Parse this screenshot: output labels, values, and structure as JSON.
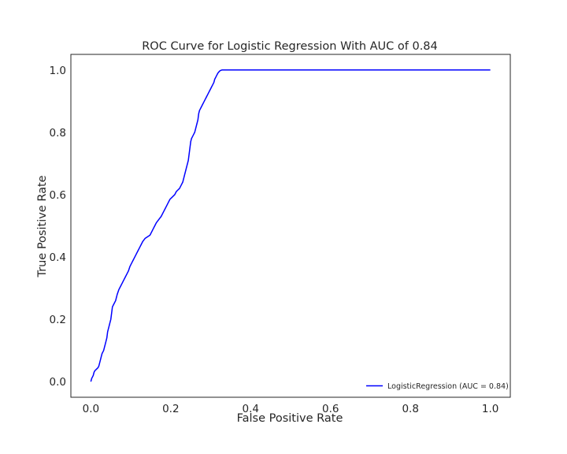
{
  "chart_data": {
    "type": "line",
    "title": "ROC Curve for Logistic Regression With AUC of 0.84",
    "xlabel": "False Positive Rate",
    "ylabel": "True Positive Rate",
    "xlim": [
      -0.05,
      1.05
    ],
    "ylim": [
      -0.05,
      1.05
    ],
    "xticks": [
      0.0,
      0.2,
      0.4,
      0.6,
      0.8,
      1.0
    ],
    "yticks": [
      0.0,
      0.2,
      0.4,
      0.6,
      0.8,
      1.0
    ],
    "xtick_labels": [
      "0.0",
      "0.2",
      "0.4",
      "0.6",
      "0.8",
      "1.0"
    ],
    "ytick_labels": [
      "0.0",
      "0.2",
      "0.4",
      "0.6",
      "0.8",
      "1.0"
    ],
    "grid": false,
    "legend_position": "lower-right",
    "series": [
      {
        "name": "LogisticRegression (AUC = 0.84)",
        "color": "#0000ff",
        "x": [
          0.0,
          0.002,
          0.004,
          0.006,
          0.008,
          0.01,
          0.014,
          0.018,
          0.02,
          0.022,
          0.024,
          0.026,
          0.028,
          0.03,
          0.032,
          0.034,
          0.036,
          0.038,
          0.04,
          0.042,
          0.044,
          0.046,
          0.048,
          0.05,
          0.052,
          0.054,
          0.058,
          0.062,
          0.064,
          0.066,
          0.07,
          0.074,
          0.078,
          0.082,
          0.086,
          0.09,
          0.094,
          0.098,
          0.102,
          0.106,
          0.11,
          0.114,
          0.118,
          0.122,
          0.126,
          0.13,
          0.136,
          0.142,
          0.148,
          0.152,
          0.156,
          0.16,
          0.164,
          0.17,
          0.176,
          0.182,
          0.186,
          0.19,
          0.194,
          0.198,
          0.202,
          0.206,
          0.21,
          0.214,
          0.218,
          0.222,
          0.226,
          0.23,
          0.234,
          0.238,
          0.24,
          0.242,
          0.244,
          0.246,
          0.248,
          0.25,
          0.252,
          0.254,
          0.256,
          0.258,
          0.26,
          0.262,
          0.264,
          0.266,
          0.268,
          0.27,
          0.272,
          0.274,
          0.276,
          0.278,
          0.28,
          0.282,
          0.284,
          0.286,
          0.288,
          0.29,
          0.292,
          0.294,
          0.296,
          0.298,
          0.3,
          0.302,
          0.304,
          0.306,
          0.308,
          0.31,
          0.312,
          0.314,
          0.316,
          0.318,
          0.32,
          0.322,
          0.324,
          0.326,
          0.328,
          1.0
        ],
        "y": [
          0.0,
          0.01,
          0.015,
          0.02,
          0.03,
          0.035,
          0.04,
          0.045,
          0.05,
          0.06,
          0.07,
          0.08,
          0.09,
          0.095,
          0.1,
          0.11,
          0.12,
          0.13,
          0.14,
          0.16,
          0.17,
          0.18,
          0.19,
          0.2,
          0.22,
          0.24,
          0.25,
          0.26,
          0.27,
          0.28,
          0.295,
          0.305,
          0.315,
          0.325,
          0.335,
          0.345,
          0.355,
          0.37,
          0.38,
          0.39,
          0.4,
          0.41,
          0.42,
          0.43,
          0.44,
          0.45,
          0.46,
          0.465,
          0.47,
          0.48,
          0.49,
          0.5,
          0.51,
          0.52,
          0.53,
          0.545,
          0.555,
          0.565,
          0.575,
          0.585,
          0.59,
          0.595,
          0.6,
          0.61,
          0.615,
          0.62,
          0.63,
          0.64,
          0.66,
          0.68,
          0.69,
          0.7,
          0.71,
          0.73,
          0.75,
          0.77,
          0.78,
          0.785,
          0.79,
          0.795,
          0.8,
          0.81,
          0.82,
          0.83,
          0.84,
          0.86,
          0.87,
          0.875,
          0.88,
          0.885,
          0.89,
          0.895,
          0.9,
          0.905,
          0.91,
          0.915,
          0.92,
          0.925,
          0.93,
          0.935,
          0.94,
          0.945,
          0.95,
          0.955,
          0.96,
          0.97,
          0.975,
          0.98,
          0.985,
          0.99,
          0.993,
          0.996,
          0.998,
          0.999,
          1.0,
          1.0
        ]
      }
    ]
  }
}
